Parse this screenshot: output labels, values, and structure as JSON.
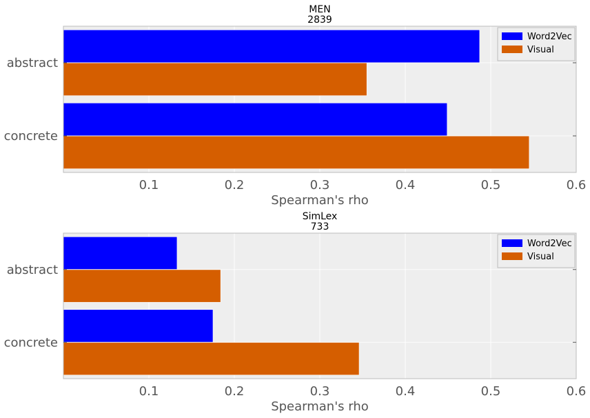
{
  "chart_data": [
    {
      "type": "bar",
      "orientation": "horizontal",
      "title_lines": [
        "MEN",
        "2839"
      ],
      "xlabel": "Spearman's rho",
      "ylabel": "",
      "categories": [
        "abstract",
        "concrete"
      ],
      "series": [
        {
          "name": "Word2Vec",
          "color": "#0000ff",
          "values": [
            0.487,
            0.449
          ]
        },
        {
          "name": "Visual",
          "color": "#d55e00",
          "values": [
            0.355,
            0.545
          ]
        }
      ],
      "xlim": [
        0,
        0.6
      ],
      "xticks": [
        0.1,
        0.2,
        0.3,
        0.4,
        0.5,
        0.6
      ],
      "xtick_labels": [
        "0.1",
        "0.2",
        "0.3",
        "0.4",
        "0.5",
        "0.6"
      ],
      "grid": true,
      "legend": "top-right"
    },
    {
      "type": "bar",
      "orientation": "horizontal",
      "title_lines": [
        "SimLex",
        "733"
      ],
      "xlabel": "Spearman's rho",
      "ylabel": "",
      "categories": [
        "abstract",
        "concrete"
      ],
      "series": [
        {
          "name": "Word2Vec",
          "color": "#0000ff",
          "values": [
            0.133,
            0.175
          ]
        },
        {
          "name": "Visual",
          "color": "#d55e00",
          "values": [
            0.184,
            0.346
          ]
        }
      ],
      "xlim": [
        0,
        0.6
      ],
      "xticks": [
        0.1,
        0.2,
        0.3,
        0.4,
        0.5,
        0.6
      ],
      "xtick_labels": [
        "0.1",
        "0.2",
        "0.3",
        "0.4",
        "0.5",
        "0.6"
      ],
      "grid": true,
      "legend": "top-right"
    }
  ]
}
